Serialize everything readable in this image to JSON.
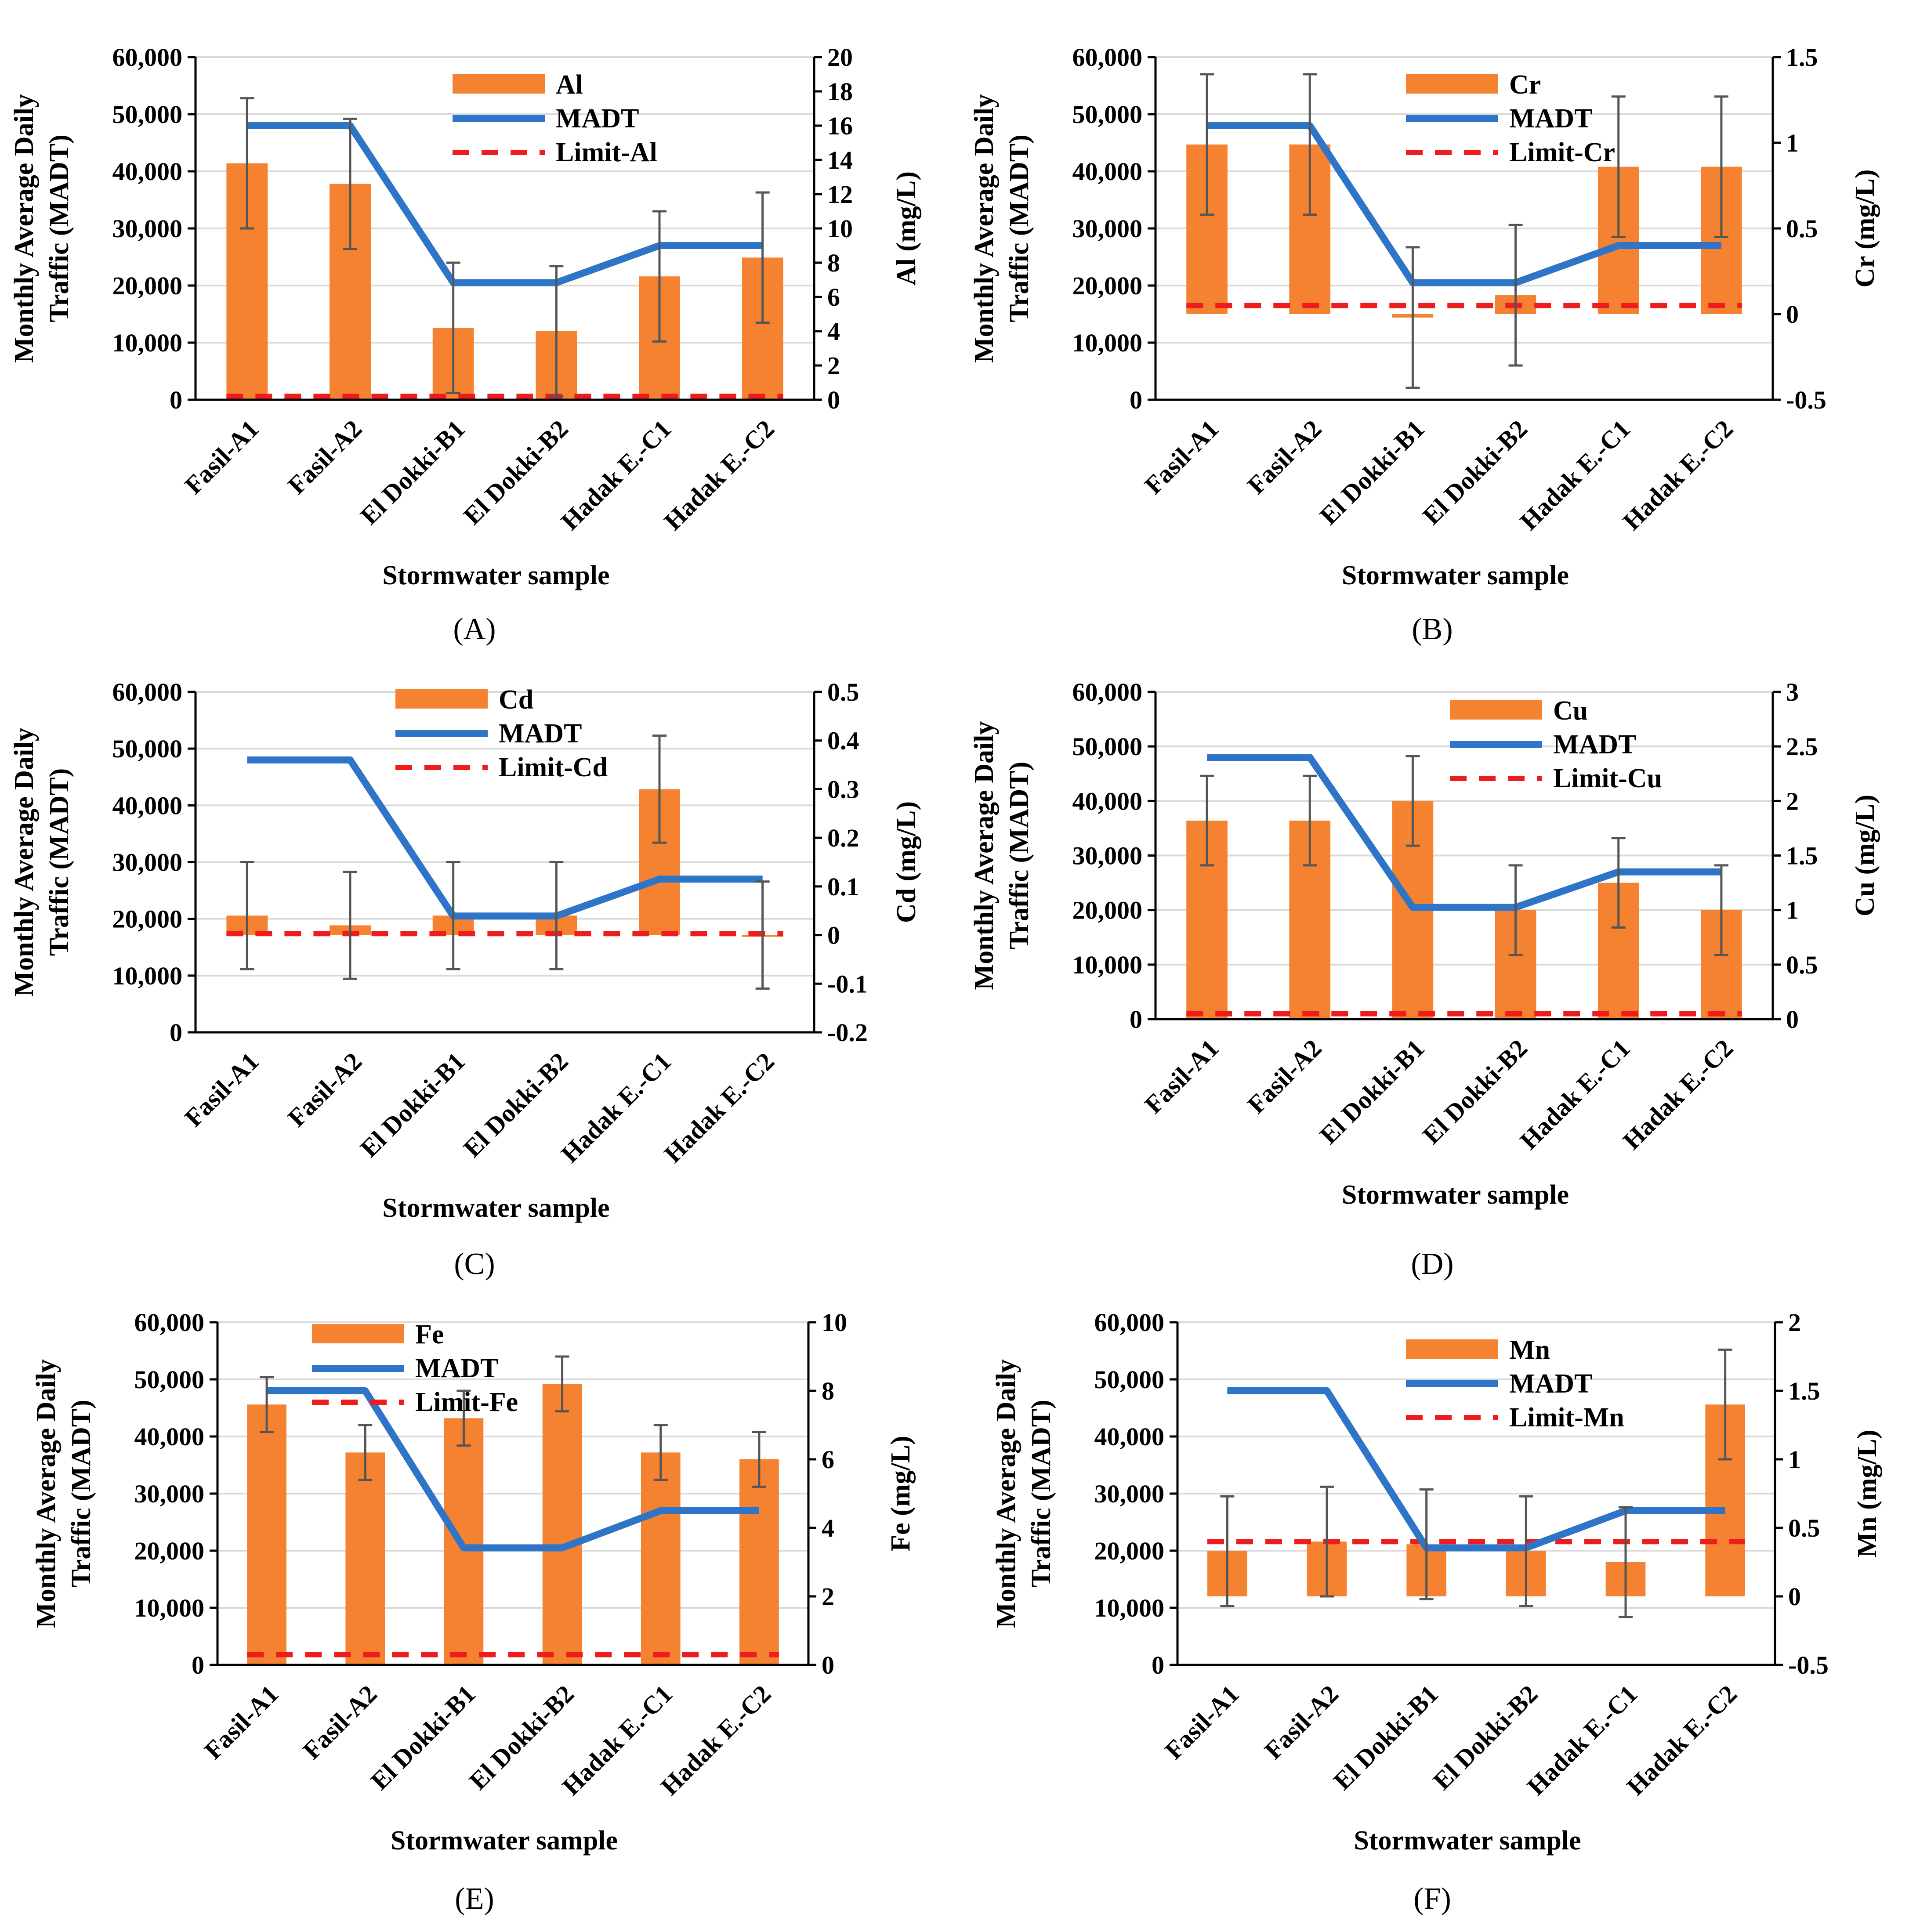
{
  "shared": {
    "categories": [
      "Fasil-A1",
      "Fasil-A2",
      "El Dokki-B1",
      "El Dokki-B2",
      "Hadak E.-C1",
      "Hadak E.-C2"
    ],
    "xlabel": "Stormwater sample",
    "left_ylabel_line1": "Monthly Average Daily",
    "left_ylabel_line2": "Traffic (MADT)",
    "left_ylim": [
      0,
      60000
    ],
    "left_ticks": [
      "0",
      "10,000",
      "20,000",
      "30,000",
      "40,000",
      "50,000",
      "60,000"
    ],
    "madt_values": [
      48000,
      48000,
      20500,
      20500,
      27000,
      27000
    ],
    "madt_label": "MADT",
    "colors": {
      "bar": "#F58230",
      "madt": "#2E75C8",
      "limit": "#EE1C1C",
      "grid": "#D9D9D9",
      "error": "#555555"
    }
  },
  "chart_data": [
    {
      "type": "bar",
      "panel": "(A)",
      "metal": "Al",
      "limit_label": "Limit-Al",
      "title": "",
      "xlabel": "Stormwater sample",
      "ylabel": "Al (mg/L)",
      "ylim": [
        0,
        20
      ],
      "ticks": [
        "0",
        "2",
        "4",
        "6",
        "8",
        "10",
        "12",
        "14",
        "16",
        "18",
        "20"
      ],
      "tick_values": [
        0,
        2,
        4,
        6,
        8,
        10,
        12,
        14,
        16,
        18,
        20
      ],
      "categories": [
        "Fasil-A1",
        "Fasil-A2",
        "El Dokki-B1",
        "El Dokki-B2",
        "Hadak E.-C1",
        "Hadak E.-C2"
      ],
      "values": [
        13.8,
        12.6,
        4.2,
        4.0,
        7.2,
        8.3
      ],
      "errors": [
        3.8,
        3.8,
        3.8,
        3.8,
        3.8,
        3.8
      ],
      "limit": 0.2,
      "legend_position": "top-center"
    },
    {
      "type": "bar",
      "panel": "(B)",
      "metal": "Cr",
      "limit_label": "Limit-Cr",
      "title": "",
      "xlabel": "Stormwater sample",
      "ylabel": "Cr (mg/L)",
      "ylim": [
        -0.5,
        1.5
      ],
      "ticks": [
        "-0.5",
        "0",
        "0.5",
        "1",
        "1.5"
      ],
      "tick_values": [
        -0.5,
        0,
        0.5,
        1,
        1.5
      ],
      "categories": [
        "Fasil-A1",
        "Fasil-A2",
        "El Dokki-B1",
        "El Dokki-B2",
        "Hadak E.-C1",
        "Hadak E.-C2"
      ],
      "values": [
        0.99,
        0.99,
        -0.02,
        0.11,
        0.86,
        0.86
      ],
      "errors": [
        0.41,
        0.41,
        0.41,
        0.41,
        0.41,
        0.41
      ],
      "limit": 0.05,
      "legend_position": "top-center"
    },
    {
      "type": "bar",
      "panel": "(C)",
      "metal": "Cd",
      "limit_label": "Limit-Cd",
      "title": "",
      "xlabel": "Stormwater sample",
      "ylabel": "Cd (mg/L)",
      "ylim": [
        -0.2,
        0.5
      ],
      "ticks": [
        "-0.2",
        "-0.1",
        "0",
        "0.1",
        "0.2",
        "0.3",
        "0.4",
        "0.5"
      ],
      "tick_values": [
        -0.2,
        -0.1,
        0,
        0.1,
        0.2,
        0.3,
        0.4,
        0.5
      ],
      "categories": [
        "Fasil-A1",
        "Fasil-A2",
        "El Dokki-B1",
        "El Dokki-B2",
        "Hadak E.-C1",
        "Hadak E.-C2"
      ],
      "values": [
        0.04,
        0.02,
        0.04,
        0.04,
        0.3,
        0.0
      ],
      "errors": [
        0.11,
        0.11,
        0.11,
        0.11,
        0.11,
        0.11
      ],
      "limit": 0.003,
      "legend_position": "top-center"
    },
    {
      "type": "bar",
      "panel": "(D)",
      "metal": "Cu",
      "limit_label": "Limit-Cu",
      "title": "",
      "xlabel": "Stormwater sample",
      "ylabel": "Cu (mg/L)",
      "ylim": [
        0,
        3
      ],
      "ticks": [
        "0",
        "0.5",
        "1",
        "1.5",
        "2",
        "2.5",
        "3"
      ],
      "tick_values": [
        0,
        0.5,
        1,
        1.5,
        2,
        2.5,
        3
      ],
      "categories": [
        "Fasil-A1",
        "Fasil-A2",
        "El Dokki-B1",
        "El Dokki-B2",
        "Hadak E.-C1",
        "Hadak E.-C2"
      ],
      "values": [
        1.82,
        1.82,
        2.0,
        1.0,
        1.25,
        1.0
      ],
      "errors": [
        0.41,
        0.41,
        0.41,
        0.41,
        0.41,
        0.41
      ],
      "limit": 0.05,
      "legend_position": "top-right"
    },
    {
      "type": "bar",
      "panel": "(E)",
      "metal": "Fe",
      "limit_label": "Limit-Fe",
      "title": "",
      "xlabel": "Stormwater sample",
      "ylabel": "Fe (mg/L)",
      "ylim": [
        0,
        10
      ],
      "ticks": [
        "0",
        "2",
        "4",
        "6",
        "8",
        "10"
      ],
      "tick_values": [
        0,
        2,
        4,
        6,
        8,
        10
      ],
      "categories": [
        "Fasil-A1",
        "Fasil-A2",
        "El Dokki-B1",
        "El Dokki-B2",
        "Hadak E.-C1",
        "Hadak E.-C2"
      ],
      "values": [
        7.6,
        6.2,
        7.2,
        8.2,
        6.2,
        6.0
      ],
      "errors": [
        0.8,
        0.8,
        0.8,
        0.8,
        0.8,
        0.8
      ],
      "limit": 0.3,
      "legend_position": "top-left"
    },
    {
      "type": "bar",
      "panel": "(F)",
      "metal": "Mn",
      "limit_label": "Limit-Mn",
      "title": "",
      "xlabel": "Stormwater sample",
      "ylabel": "Mn (mg/L)",
      "ylim": [
        -0.5,
        2
      ],
      "ticks": [
        "-0.5",
        "0",
        "0.5",
        "1",
        "1.5",
        "2"
      ],
      "tick_values": [
        -0.5,
        0,
        0.5,
        1,
        1.5,
        2
      ],
      "categories": [
        "Fasil-A1",
        "Fasil-A2",
        "El Dokki-B1",
        "El Dokki-B2",
        "Hadak E.-C1",
        "Hadak E.-C2"
      ],
      "values": [
        0.33,
        0.4,
        0.38,
        0.33,
        0.25,
        1.4
      ],
      "errors": [
        0.4,
        0.4,
        0.4,
        0.4,
        0.4,
        0.4
      ],
      "limit": 0.4,
      "legend_position": "top-center"
    }
  ]
}
